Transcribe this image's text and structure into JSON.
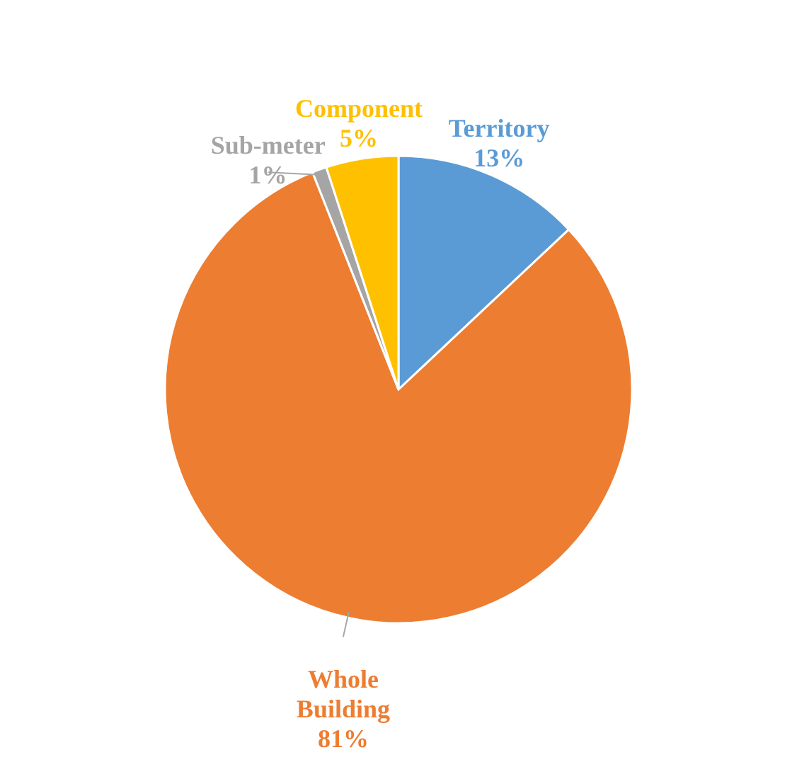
{
  "chart_data": {
    "type": "pie",
    "categories": [
      "Territory",
      "Whole Building",
      "Sub-meter",
      "Component"
    ],
    "values": [
      13,
      81,
      1,
      5
    ],
    "value_labels": [
      "13%",
      "81%",
      "1%",
      "5%"
    ],
    "colors": [
      "#5b9bd5",
      "#ed7d31",
      "#a5a5a5",
      "#ffc000"
    ]
  }
}
